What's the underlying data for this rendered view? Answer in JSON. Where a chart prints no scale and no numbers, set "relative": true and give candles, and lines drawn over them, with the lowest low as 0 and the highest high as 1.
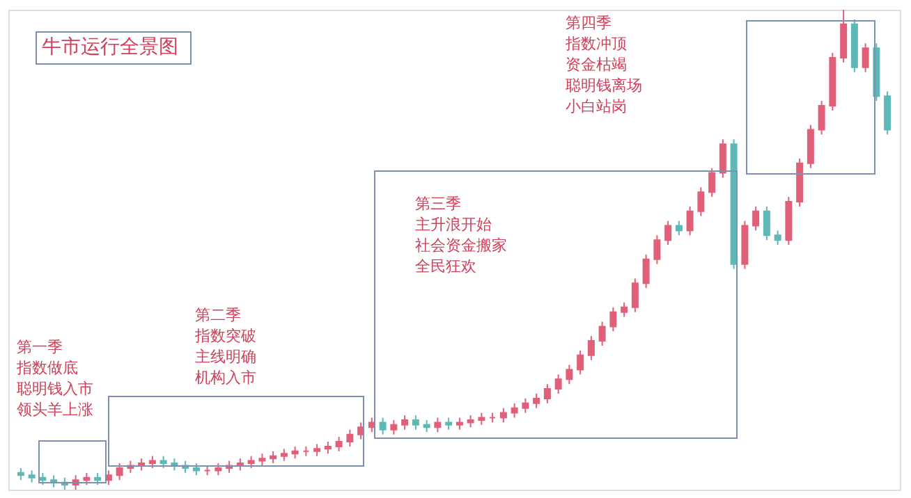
{
  "chart_data": {
    "type": "candlestick",
    "relative": true,
    "title": "牛市运行全景图",
    "annotations": [
      "第一季",
      "指数做底",
      "聪明钱入市",
      "领头羊上涨",
      "第二季",
      "指数突破",
      "主线明确",
      "机构入市",
      "第三季",
      "主升浪开始",
      "社会资金搬家",
      "全民狂欢",
      "第四季",
      "指数冲顶",
      "资金枯竭",
      "聪明钱离场",
      "小白站岗"
    ],
    "categories": [
      null,
      null,
      null,
      null,
      null,
      null,
      null,
      null,
      null,
      null,
      null,
      null,
      null,
      null,
      null,
      null,
      null,
      null,
      null,
      null,
      null,
      null,
      null,
      null,
      null,
      null,
      null,
      null,
      null,
      null,
      null,
      null,
      null,
      null,
      null,
      null,
      null,
      null,
      null,
      null,
      null,
      null,
      null,
      null,
      null,
      null,
      null,
      null,
      null,
      null,
      null,
      null,
      null,
      null,
      null,
      null,
      null,
      null,
      null,
      null,
      null,
      null,
      null,
      null,
      null,
      null,
      null,
      null,
      null,
      null,
      null,
      null,
      null,
      null,
      null,
      null,
      null,
      null,
      null,
      null
    ],
    "ohlc": [
      [
        0.035,
        0.045,
        0.02,
        0.03
      ],
      [
        0.03,
        0.04,
        0.015,
        0.025
      ],
      [
        0.025,
        0.035,
        0.01,
        0.02
      ],
      [
        0.02,
        0.03,
        0.005,
        0.015
      ],
      [
        0.015,
        0.025,
        0,
        0.01
      ],
      [
        0.01,
        0.03,
        0,
        0.02
      ],
      [
        0.02,
        0.035,
        0.01,
        0.025
      ],
      [
        0.025,
        0.035,
        0.01,
        0.02
      ],
      [
        0.02,
        0.04,
        0.01,
        0.03
      ],
      [
        0.03,
        0.055,
        0.02,
        0.045
      ],
      [
        0.045,
        0.06,
        0.035,
        0.05
      ],
      [
        0.05,
        0.065,
        0.04,
        0.055
      ],
      [
        0.055,
        0.07,
        0.045,
        0.06
      ],
      [
        0.06,
        0.07,
        0.045,
        0.055
      ],
      [
        0.055,
        0.065,
        0.04,
        0.05
      ],
      [
        0.05,
        0.06,
        0.035,
        0.045
      ],
      [
        0.045,
        0.055,
        0.03,
        0.04
      ],
      [
        0.04,
        0.05,
        0.03,
        0.04
      ],
      [
        0.04,
        0.055,
        0.03,
        0.045
      ],
      [
        0.045,
        0.06,
        0.035,
        0.05
      ],
      [
        0.05,
        0.065,
        0.04,
        0.055
      ],
      [
        0.055,
        0.07,
        0.045,
        0.06
      ],
      [
        0.06,
        0.075,
        0.05,
        0.065
      ],
      [
        0.065,
        0.08,
        0.055,
        0.07
      ],
      [
        0.07,
        0.085,
        0.06,
        0.075
      ],
      [
        0.075,
        0.09,
        0.065,
        0.08
      ],
      [
        0.08,
        0.09,
        0.07,
        0.08
      ],
      [
        0.08,
        0.095,
        0.07,
        0.085
      ],
      [
        0.085,
        0.1,
        0.075,
        0.09
      ],
      [
        0.09,
        0.11,
        0.08,
        0.1
      ],
      [
        0.1,
        0.125,
        0.09,
        0.115
      ],
      [
        0.115,
        0.14,
        0.105,
        0.13
      ],
      [
        0.13,
        0.15,
        0.12,
        0.14
      ],
      [
        0.14,
        0.15,
        0.115,
        0.125
      ],
      [
        0.125,
        0.145,
        0.115,
        0.135
      ],
      [
        0.135,
        0.155,
        0.125,
        0.145
      ],
      [
        0.145,
        0.155,
        0.125,
        0.135
      ],
      [
        0.135,
        0.145,
        0.12,
        0.13
      ],
      [
        0.13,
        0.15,
        0.12,
        0.14
      ],
      [
        0.14,
        0.15,
        0.125,
        0.135
      ],
      [
        0.135,
        0.15,
        0.125,
        0.14
      ],
      [
        0.14,
        0.155,
        0.13,
        0.145
      ],
      [
        0.145,
        0.16,
        0.135,
        0.15
      ],
      [
        0.15,
        0.16,
        0.14,
        0.15
      ],
      [
        0.15,
        0.17,
        0.14,
        0.16
      ],
      [
        0.16,
        0.18,
        0.15,
        0.17
      ],
      [
        0.17,
        0.19,
        0.16,
        0.18
      ],
      [
        0.18,
        0.2,
        0.17,
        0.19
      ],
      [
        0.19,
        0.22,
        0.18,
        0.21
      ],
      [
        0.21,
        0.24,
        0.2,
        0.23
      ],
      [
        0.23,
        0.26,
        0.22,
        0.25
      ],
      [
        0.25,
        0.29,
        0.24,
        0.28
      ],
      [
        0.28,
        0.32,
        0.27,
        0.31
      ],
      [
        0.31,
        0.35,
        0.3,
        0.34
      ],
      [
        0.34,
        0.38,
        0.33,
        0.37
      ],
      [
        0.37,
        0.39,
        0.36,
        0.38
      ],
      [
        0.38,
        0.44,
        0.37,
        0.43
      ],
      [
        0.43,
        0.49,
        0.42,
        0.48
      ],
      [
        0.48,
        0.53,
        0.47,
        0.52
      ],
      [
        0.52,
        0.56,
        0.51,
        0.55
      ],
      [
        0.55,
        0.56,
        0.53,
        0.54
      ],
      [
        0.54,
        0.59,
        0.53,
        0.58
      ],
      [
        0.58,
        0.63,
        0.57,
        0.62
      ],
      [
        0.62,
        0.67,
        0.61,
        0.66
      ],
      [
        0.66,
        0.73,
        0.65,
        0.72
      ],
      [
        0.72,
        0.73,
        0.46,
        0.47
      ],
      [
        0.47,
        0.56,
        0.46,
        0.55
      ],
      [
        0.55,
        0.59,
        0.54,
        0.58
      ],
      [
        0.58,
        0.59,
        0.52,
        0.53
      ],
      [
        0.53,
        0.54,
        0.51,
        0.52
      ],
      [
        0.52,
        0.61,
        0.51,
        0.6
      ],
      [
        0.6,
        0.69,
        0.59,
        0.68
      ],
      [
        0.68,
        0.76,
        0.67,
        0.75
      ],
      [
        0.75,
        0.81,
        0.74,
        0.8
      ],
      [
        0.8,
        0.91,
        0.79,
        0.9
      ],
      [
        0.9,
        1,
        0.89,
        0.97
      ],
      [
        0.97,
        0.98,
        0.87,
        0.88
      ],
      [
        0.88,
        0.93,
        0.87,
        0.92
      ],
      [
        0.92,
        0.93,
        0.81,
        0.82
      ],
      [
        0.82,
        0.83,
        0.74,
        0.75
      ]
    ],
    "colors": [
      "#5fb8b8",
      "#5fb8b8",
      "#5fb8b8",
      "#5fb8b8",
      "#5fb8b8",
      "#e0607a",
      "#e0607a",
      "#5fb8b8",
      "#e0607a",
      "#e0607a",
      "#e0607a",
      "#e0607a",
      "#e0607a",
      "#5fb8b8",
      "#5fb8b8",
      "#5fb8b8",
      "#5fb8b8",
      "#e0607a",
      "#e0607a",
      "#e0607a",
      "#e0607a",
      "#e0607a",
      "#e0607a",
      "#e0607a",
      "#e0607a",
      "#e0607a",
      "#e0607a",
      "#e0607a",
      "#e0607a",
      "#e0607a",
      "#e0607a",
      "#e0607a",
      "#e0607a",
      "#5fb8b8",
      "#e0607a",
      "#e0607a",
      "#5fb8b8",
      "#5fb8b8",
      "#e0607a",
      "#5fb8b8",
      "#e0607a",
      "#e0607a",
      "#e0607a",
      "#e0607a",
      "#e0607a",
      "#e0607a",
      "#e0607a",
      "#e0607a",
      "#e0607a",
      "#e0607a",
      "#e0607a",
      "#e0607a",
      "#e0607a",
      "#e0607a",
      "#e0607a",
      "#e0607a",
      "#e0607a",
      "#e0607a",
      "#e0607a",
      "#e0607a",
      "#5fb8b8",
      "#e0607a",
      "#e0607a",
      "#e0607a",
      "#e0607a",
      "#5fb8b8",
      "#e0607a",
      "#e0607a",
      "#5fb8b8",
      "#5fb8b8",
      "#e0607a",
      "#e0607a",
      "#e0607a",
      "#e0607a",
      "#e0607a",
      "#e0607a",
      "#5fb8b8",
      "#e0607a",
      "#5fb8b8",
      "#5fb8b8"
    ]
  }
}
